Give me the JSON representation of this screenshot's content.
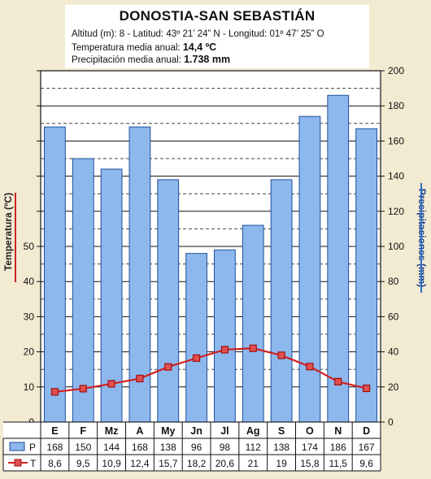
{
  "header": {
    "title": "DONOSTIA-SAN SEBASTIÁN",
    "coords": "Altitud (m): 8 - Latitud: 43º 21’ 24” N - Longitud: 01º 47’ 25” O",
    "temp_label": "Temperatura media anual: ",
    "temp_value": "14,4 ºC",
    "prec_label": "Precipitación media anual: ",
    "prec_value": "1.738 mm"
  },
  "colors": {
    "bar_fill": "#8db8ee",
    "bar_stroke": "#1d4f9a",
    "temp_line": "#d42020",
    "temp_marker": "#e05050"
  },
  "chart_data": {
    "type": "bar",
    "categories": [
      "E",
      "F",
      "Mz",
      "A",
      "My",
      "Jn",
      "Jl",
      "Ag",
      "S",
      "O",
      "N",
      "D"
    ],
    "series": [
      {
        "name": "P",
        "type": "bar",
        "axis": "right",
        "display": [
          "168",
          "150",
          "144",
          "168",
          "138",
          "96",
          "98",
          "112",
          "138",
          "174",
          "186",
          "167"
        ],
        "values": [
          168,
          150,
          144,
          168,
          138,
          96,
          98,
          112,
          138,
          174,
          186,
          167
        ]
      },
      {
        "name": "T",
        "type": "line",
        "axis": "left",
        "display": [
          "8,6",
          "9,5",
          "10,9",
          "12,4",
          "15,7",
          "18,2",
          "20,6",
          "21",
          "19",
          "15,8",
          "11,5",
          "9,6"
        ],
        "values": [
          8.6,
          9.5,
          10.9,
          12.4,
          15.7,
          18.2,
          20.6,
          21,
          19,
          15.8,
          11.5,
          9.6
        ]
      }
    ],
    "ylabel_left": "Temperatura (ºC)",
    "ylabel_right": "Precipitaciones (mm)",
    "yticks_left": [
      0,
      10,
      20,
      30,
      40,
      50
    ],
    "yticks_right": [
      0,
      20,
      40,
      60,
      80,
      100,
      120,
      140,
      160,
      180,
      200
    ],
    "ylim_left": [
      0,
      100
    ],
    "ylim_right": [
      0,
      200
    ]
  }
}
